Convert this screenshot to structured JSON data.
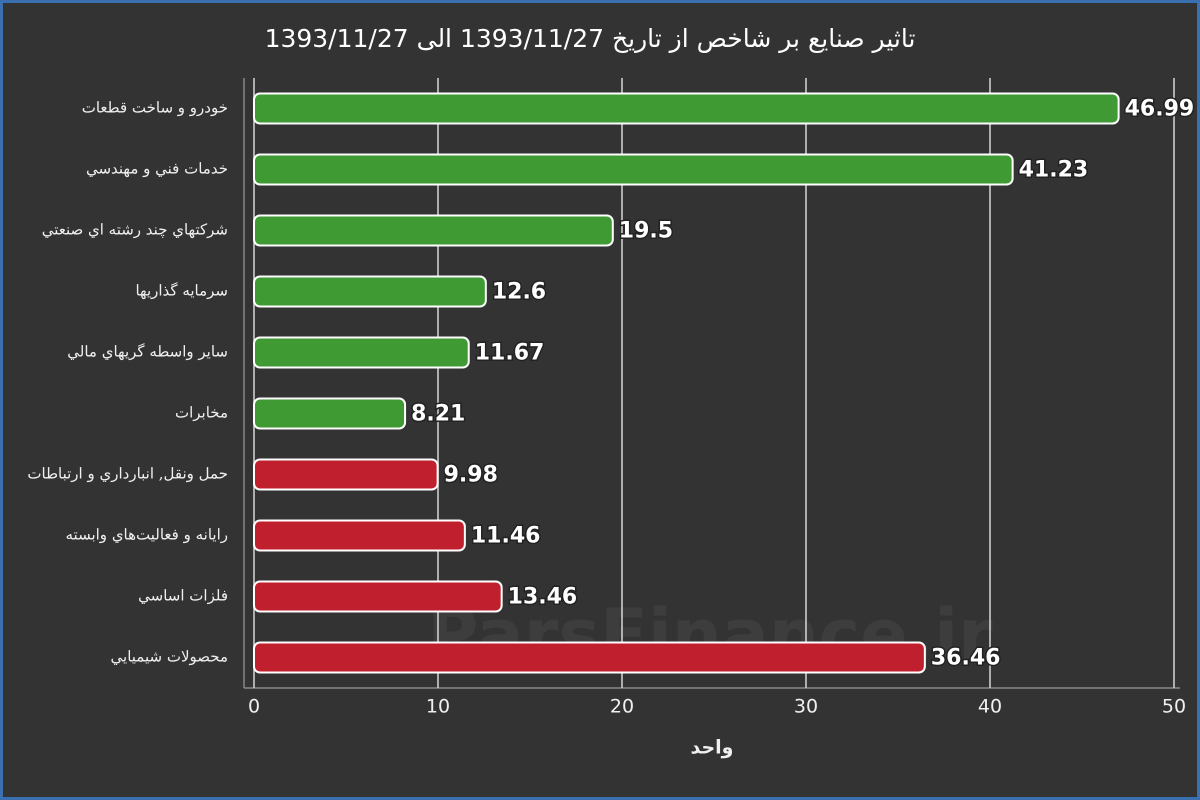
{
  "chart_data": {
    "type": "bar",
    "orientation": "horizontal",
    "title": "تاثیر صنایع بر شاخص از تاریخ 1393/11/27 الی 1393/11/27",
    "watermark": "ParsFinance.ir",
    "x_label": "واحد",
    "categories": [
      "خودرو و ساخت قطعات",
      "خدمات فني و مهندسي",
      "شركتهاي چند رشته اي صنعتي",
      "سرمايه گذاريها",
      "ساير واسطه گريهاي مالي",
      "مخابرات",
      "حمل ونقل, انبارداري و ارتباطات",
      "رايانه و فعاليت‌هاي وابسته",
      "فلزات اساسي",
      "محصولات شيميايي"
    ],
    "values": [
      46.99,
      41.23,
      19.5,
      12.6,
      11.67,
      8.21,
      9.98,
      11.46,
      13.46,
      36.46
    ],
    "colors": [
      "#3f9a34",
      "#3f9a34",
      "#3f9a34",
      "#3f9a34",
      "#3f9a34",
      "#3f9a34",
      "#c0202e",
      "#c0202e",
      "#c0202e",
      "#c0202e"
    ],
    "xlim": [
      0,
      50
    ],
    "xticks": [
      0,
      10,
      20,
      30,
      40,
      50
    ],
    "grid": true
  }
}
